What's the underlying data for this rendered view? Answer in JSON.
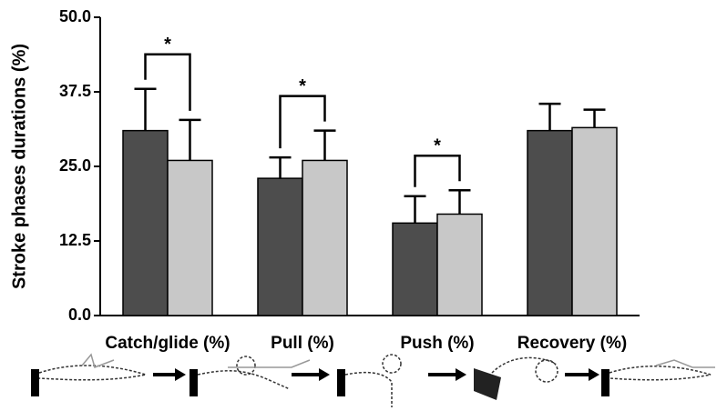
{
  "chart_data": {
    "type": "bar",
    "y_label": "Stroke phases durations (%)",
    "categories": [
      "Catch/glide (%)",
      "Pull (%)",
      "Push (%)",
      "Recovery (%)"
    ],
    "series": [
      {
        "color": "#4d4d4d",
        "values": [
          31,
          23,
          15.5,
          31
        ],
        "errors": [
          7,
          3.5,
          4.5,
          4.5
        ]
      },
      {
        "color": "#c8c8c8",
        "values": [
          26,
          26,
          17,
          31.5
        ],
        "errors": [
          6.8,
          5,
          4,
          3
        ]
      }
    ],
    "ylim": [
      0,
      50
    ],
    "yticks": [
      {
        "value": 0,
        "label": "0.0"
      },
      {
        "value": 12.5,
        "label": "12.5"
      },
      {
        "value": 25,
        "label": "25.0"
      },
      {
        "value": 37.5,
        "label": "37.5"
      },
      {
        "value": 50,
        "label": "50.0"
      }
    ],
    "annotations": [
      "*",
      "*",
      "*"
    ],
    "grid": false
  }
}
